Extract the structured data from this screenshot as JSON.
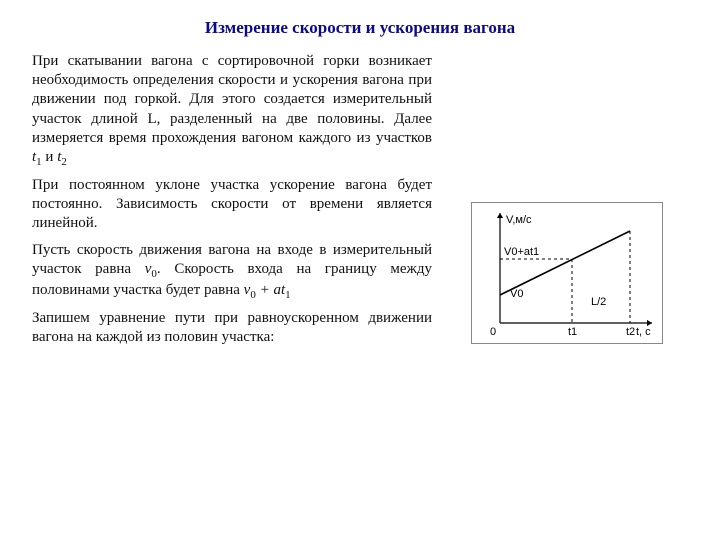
{
  "title": "Измерение  скорости и ускорения вагона",
  "title_color": "#0a0a8a",
  "title_fontsize": 17,
  "body_fontsize": 15,
  "body_color": "#111111",
  "p1a": "При скатывании вагона с сортировочной горки возникает необходимость определения скорости и ускорения вагона при движении под горкой. Для этого создается измерительный участок длиной L, разделенный на две половины. Далее измеряется время прохождения вагоном каждого из участков ",
  "p1_t1": "t",
  "p1_s1": "1",
  "p1_and": " и ",
  "p1_t2": "t",
  "p1_s2": "2",
  "p2": "При постоянном уклоне участка ускорение вагона будет постоянно. Зависимость скорости от времени является линейной.",
  "p3a": "Пусть скорость движения вагона на входе в измерительный участок равна  ",
  "p3_v0": "v",
  "p3_v0s": "0",
  "p3b": ". Скорость входа на границу между половинами участка будет равна ",
  "p3_expr_v": "v",
  "p3_expr_v0s": "0",
  "p3_expr_plus": " + ",
  "p3_expr_a": "at",
  "p3_expr_a1s": "1",
  "p4": "Запишем уравнение пути при равноускоренном движении вагона на каждой из половин участка:",
  "chart": {
    "type": "line",
    "width": 190,
    "height": 140,
    "border_color": "#888888",
    "background_color": "#ffffff",
    "stroke_color": "#000000",
    "y_axis_label": "V,м/с",
    "x_axis_label": "t, с",
    "origin_label": "0",
    "tick_t1": "t1",
    "tick_t2": "t2",
    "label_v0": "V0",
    "label_v0at1": "V0+at1",
    "label_Lhalf": "L/2",
    "axis_origin": [
      28,
      120
    ],
    "x_axis_end": [
      180,
      120
    ],
    "y_axis_end": [
      28,
      10
    ],
    "line_start": [
      28,
      92
    ],
    "line_t1": [
      100,
      56
    ],
    "line_t2": [
      158,
      28
    ],
    "dash_pattern": "3,3",
    "arrow_size": 5,
    "font_size": 11
  }
}
